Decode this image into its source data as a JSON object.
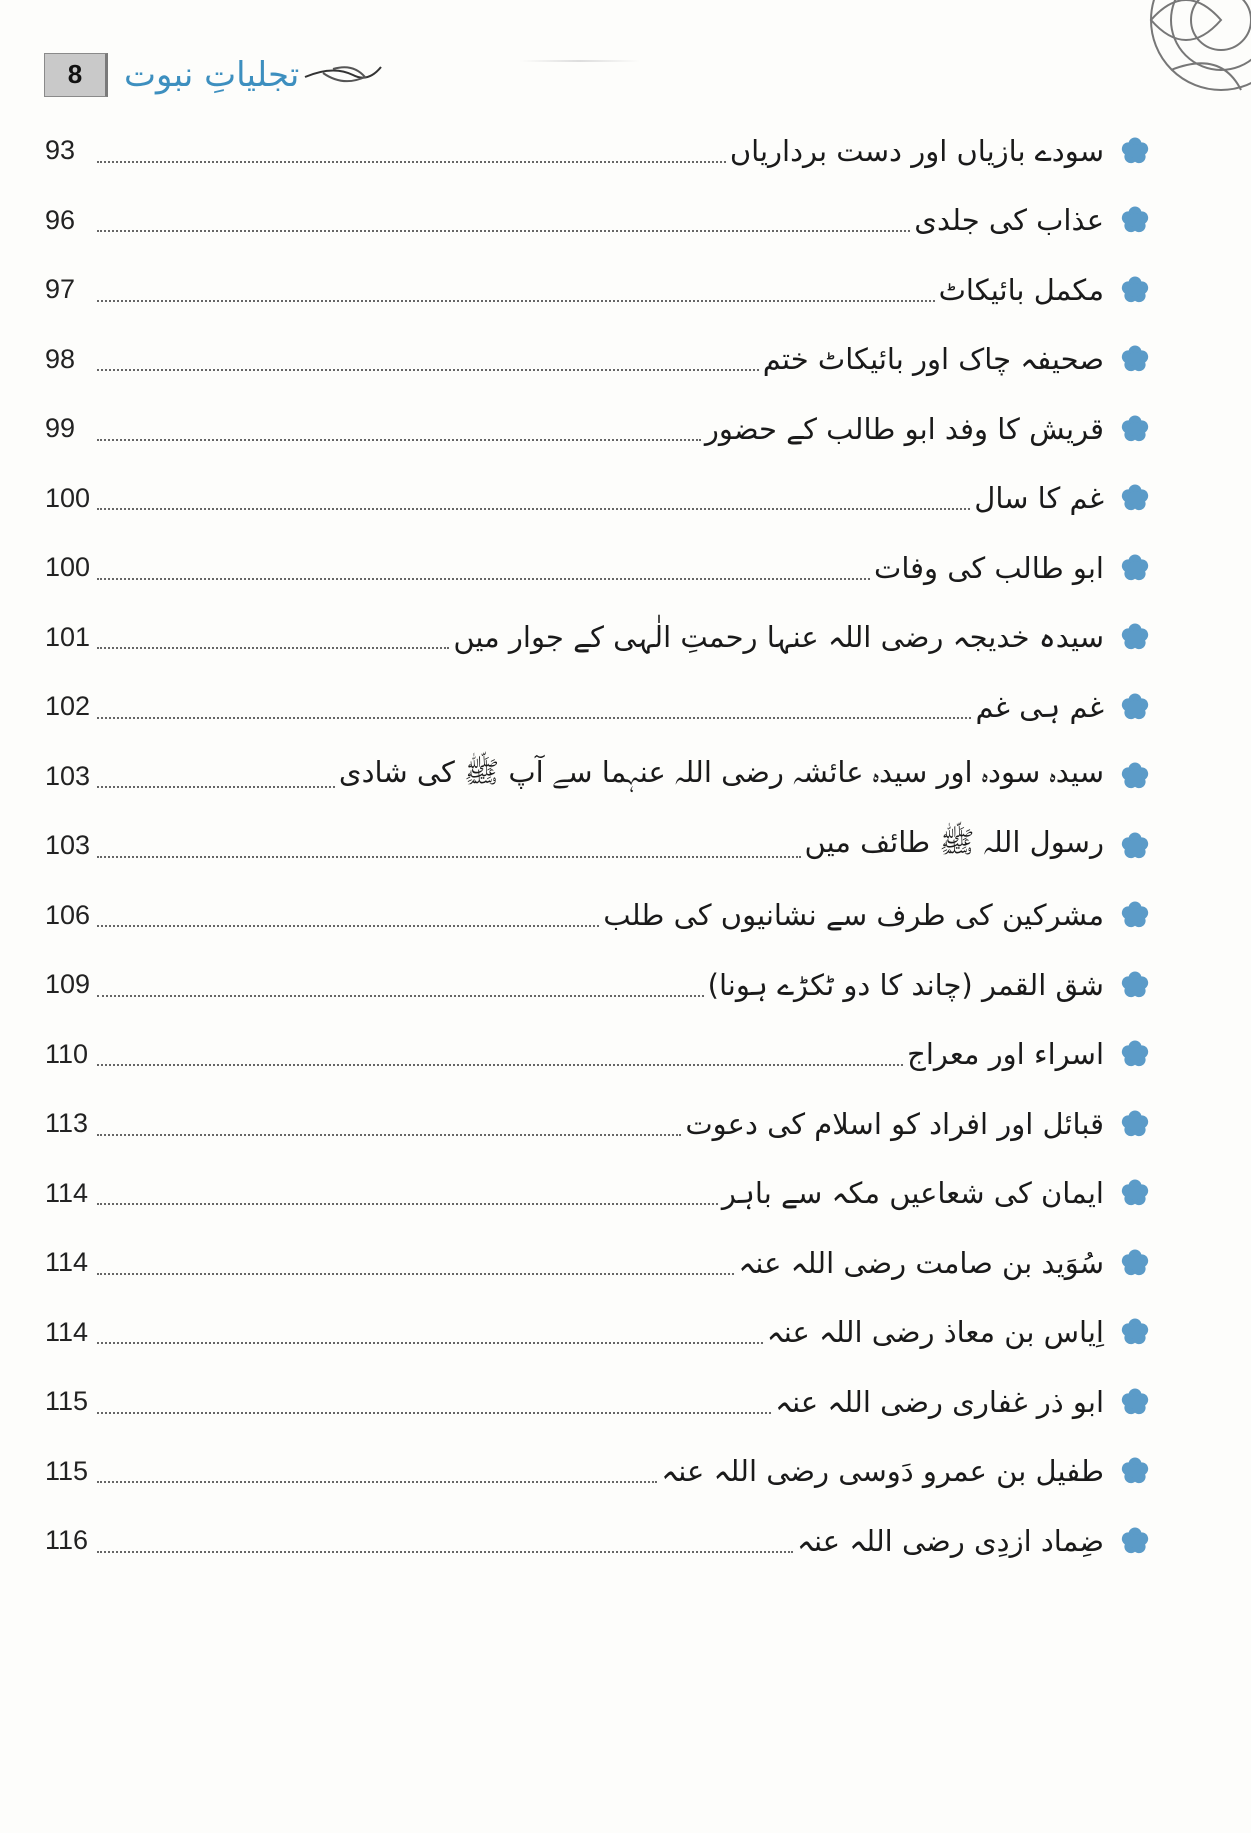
{
  "header": {
    "page_number": "8",
    "book_title": "تجلیاتِ نبوت"
  },
  "accent_color": "#5b9bc8",
  "bullet_icon": "blue-flower-bullet",
  "toc": [
    {
      "title": "سودے بازیاں اور دست برداریاں",
      "page": "93"
    },
    {
      "title": "عذاب کی جلدی",
      "page": "96"
    },
    {
      "title": "مکمل بائیکاٹ",
      "page": "97"
    },
    {
      "title": "صحیفہ چاک اور بائیکاٹ ختم",
      "page": "98"
    },
    {
      "title": "قریش کا وفد ابو طالب کے حضور",
      "page": "99"
    },
    {
      "title": "غم کا سال",
      "page": "100"
    },
    {
      "title": "ابو طالب کی وفات",
      "page": "100"
    },
    {
      "title": "سیدہ خدیجہ رضی اللہ عنہا رحمتِ الٰہی کے جوار میں",
      "page": "101"
    },
    {
      "title": "غم ہی غم",
      "page": "102"
    },
    {
      "title": "سیدہ سودہ اور سیدہ عائشہ رضی اللہ عنہما سے آپ ﷺ کی شادی",
      "page": "103"
    },
    {
      "title": "رسول اللہ ﷺ طائف میں",
      "page": "103"
    },
    {
      "title": "مشرکین کی طرف سے نشانیوں کی طلب",
      "page": "106"
    },
    {
      "title": "شق القمر (چاند کا دو ٹکڑے ہونا)",
      "page": "109"
    },
    {
      "title": "اسراء اور معراج",
      "page": "110"
    },
    {
      "title": "قبائل اور افراد کو اسلام کی دعوت",
      "page": "113"
    },
    {
      "title": "ایمان کی شعاعیں مکہ سے باہر",
      "page": "114"
    },
    {
      "title": "سُوَید بن صامت رضی اللہ عنہ",
      "page": "114"
    },
    {
      "title": "اِیاس بن معاذ رضی اللہ عنہ",
      "page": "114"
    },
    {
      "title": "ابو ذر غفاری رضی اللہ عنہ",
      "page": "115"
    },
    {
      "title": "طفیل بن عمرو دَوسی رضی اللہ عنہ",
      "page": "115"
    },
    {
      "title": "ضِماد ازدِی رضی اللہ عنہ",
      "page": "116"
    }
  ]
}
